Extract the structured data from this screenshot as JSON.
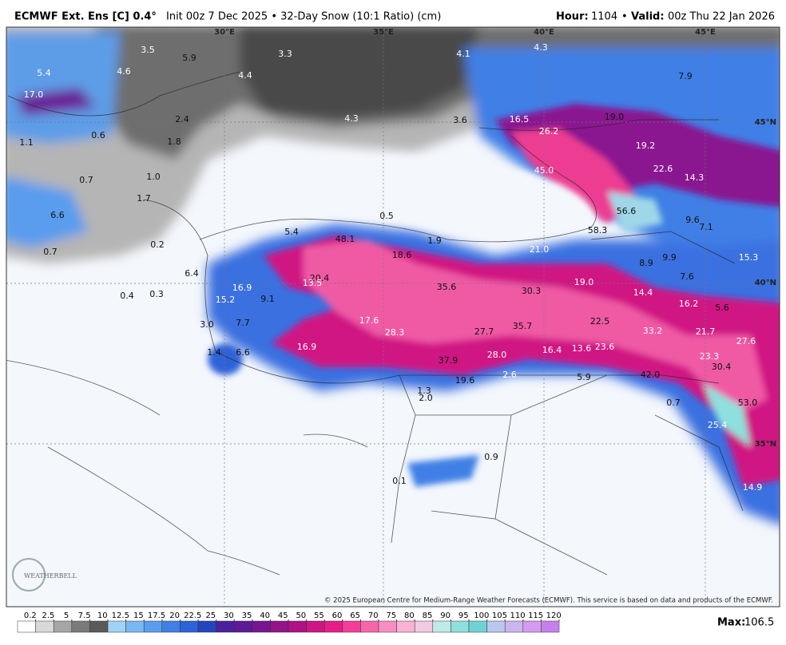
{
  "header": {
    "title": "ECMWF Ext. Ens [C] 0.4°",
    "subtitle": "Init 00z 7 Dec 2025 • 32-Day Snow (10:1 Ratio) (cm)",
    "hour_label": "Hour:",
    "hour": "1104",
    "separator": "•",
    "valid_label": "Valid:",
    "valid": "00z Thu 22 Jan 2026"
  },
  "map": {
    "graticule": [
      "30°E",
      "35°E",
      "40°E",
      "45°E",
      "45°N",
      "40°N",
      "35°N"
    ],
    "labels": [
      "5.4",
      "17.0",
      "3.5",
      "5.9",
      "4.6",
      "3.3",
      "4.4",
      "4.1",
      "4.3",
      "7.9",
      "2.4",
      "4.3",
      "3.6",
      "16.5",
      "19.0",
      "26.2",
      "0.6",
      "1.1",
      "1.8",
      "19.2",
      "22.6",
      "45.0",
      "14.3",
      "1.0",
      "0.7",
      "1.7",
      "56.6",
      "6.6",
      "0.5",
      "9.6",
      "7.1",
      "58.3",
      "5.4",
      "48.1",
      "1.9",
      "0.2",
      "0.7",
      "21.0",
      "18.6",
      "15.3",
      "9.9",
      "8.9",
      "6.4",
      "20.4",
      "13.5",
      "7.6",
      "19.0",
      "35.6",
      "16.9",
      "30.3",
      "14.4",
      "0.4",
      "0.3",
      "9.1",
      "15.2",
      "16.2",
      "5.6",
      "17.6",
      "22.5",
      "3.0",
      "7.7",
      "35.7",
      "28.3",
      "27.7",
      "33.2",
      "21.7",
      "27.6",
      "16.9",
      "23.6",
      "13.6",
      "16.4",
      "1.4",
      "6.6",
      "28.0",
      "23.3",
      "37.9",
      "30.4",
      "2.6",
      "42.0",
      "5.9",
      "19.6",
      "1.3",
      "2.0",
      "0.7",
      "53.0",
      "25.4",
      "0.9",
      "0.1",
      "14.9"
    ],
    "logo": "WEATHERBELL",
    "copyright": "© 2025 European Centre for Medium-Range Weather Forecasts (ECMWF). This service is based on data and products of the ECMWF."
  },
  "colorbar": {
    "ticks": [
      0.2,
      2.5,
      5,
      7.5,
      10,
      12.5,
      15,
      17.5,
      20,
      22.5,
      25,
      30,
      35,
      40,
      45,
      50,
      55,
      60,
      65,
      70,
      75,
      80,
      85,
      90,
      95,
      100,
      105,
      110,
      115,
      120
    ],
    "colors": [
      "#ffffff",
      "#d9d9d9",
      "#a6a6a6",
      "#7a7a7a",
      "#5a5a5a",
      "#9fd3f7",
      "#78b8f3",
      "#5a9cee",
      "#4080e6",
      "#2d63d8",
      "#2346c0",
      "#4b1f9e",
      "#5e1a96",
      "#78168f",
      "#941388",
      "#b01285",
      "#cc1683",
      "#e61d86",
      "#f23e98",
      "#f766ad",
      "#f98cc2",
      "#f8b2d4",
      "#f2cbe0",
      "#bfeaea",
      "#8ee0de",
      "#6fd3d6",
      "#b8c8f0",
      "#c9b6ee",
      "#d69af0",
      "#c77ff0"
    ],
    "max_label": "Max:",
    "max": "106.5"
  }
}
